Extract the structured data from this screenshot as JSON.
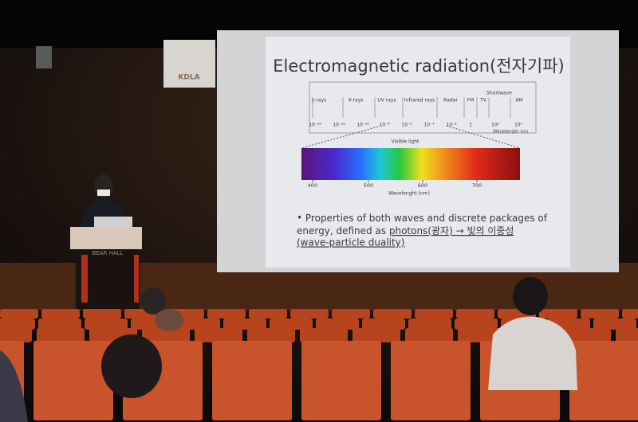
{
  "banner": {
    "logo": "KDLA"
  },
  "slide": {
    "title": "Electromagnetic radiation(전자기파)",
    "bands": [
      "γ-rays",
      "X-rays",
      "UV rays",
      "Infrared rays",
      "Radar",
      "FM",
      "TV",
      "Shortwave",
      "AM"
    ],
    "wavelength_ticks": [
      "10⁻¹⁴",
      "10⁻¹²",
      "10⁻¹⁰",
      "10⁻⁸",
      "10⁻⁶",
      "10⁻⁴",
      "10⁻²",
      "1",
      "10²",
      "10⁴"
    ],
    "wavelength_axis": "Wavelength (m)",
    "visible_label": "Visible light",
    "visible_ticks": [
      "400",
      "500",
      "600",
      "700"
    ],
    "visible_axis": "Wavelenght (nm)",
    "bullet": {
      "line1": "Properties of both waves and discrete packages of",
      "line2a": "energy, defined as ",
      "line2b": "photons(광자) → 빛의 이중성",
      "line3": "(wave-particle duality)"
    }
  },
  "podium": {
    "sign": "BEAR HALL"
  }
}
